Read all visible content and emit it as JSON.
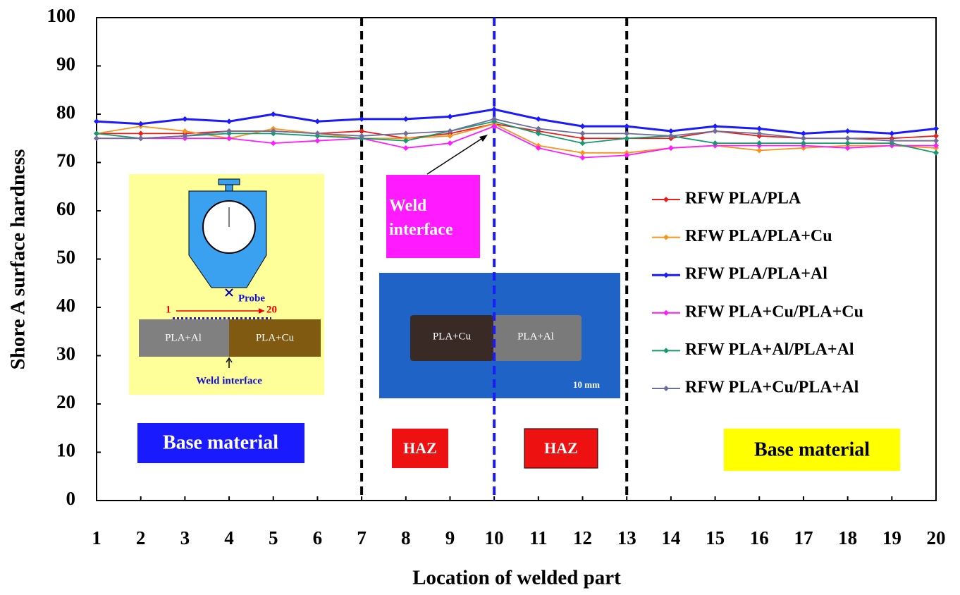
{
  "chart_data": {
    "type": "line",
    "y_label": "Shore  A surface hardness",
    "x_label": "Location of welded part",
    "x": [
      1,
      2,
      3,
      4,
      5,
      6,
      7,
      8,
      9,
      10,
      11,
      12,
      13,
      14,
      15,
      16,
      17,
      18,
      19,
      20
    ],
    "xlim": [
      1,
      20
    ],
    "xticks": [
      1,
      2,
      3,
      4,
      5,
      6,
      7,
      8,
      9,
      10,
      11,
      12,
      13,
      14,
      15,
      16,
      17,
      18,
      19,
      20
    ],
    "ylim": [
      0,
      100
    ],
    "yticks": [
      0,
      10,
      20,
      30,
      40,
      50,
      60,
      70,
      80,
      90,
      100
    ],
    "grid": false,
    "legend": "right",
    "series": [
      {
        "name": "RFW PLA/PLA",
        "color": "#e8201a",
        "values": [
          76,
          76,
          76,
          76.5,
          76.5,
          76,
          76.5,
          75,
          76,
          78,
          76.5,
          75,
          75,
          75,
          76.5,
          75.5,
          75,
          75,
          75,
          75.5
        ]
      },
      {
        "name": "RFW PLA/PLA+Cu",
        "color": "#f7941d",
        "values": [
          76,
          77.5,
          76.5,
          75,
          77,
          76,
          75,
          75,
          75.5,
          78,
          73.5,
          72,
          72,
          73,
          73.5,
          72.5,
          73,
          73.5,
          73.5,
          73
        ]
      },
      {
        "name": "RFW PLA/PLA+Al",
        "color": "#1a1aff",
        "values": [
          78.5,
          78,
          79,
          78.5,
          80,
          78.5,
          79,
          79,
          79.5,
          81,
          79,
          77.5,
          77.5,
          76.5,
          77.5,
          77,
          76,
          76.5,
          76,
          77
        ]
      },
      {
        "name": "RFW PLA+Cu/PLA+Cu",
        "color": "#ff1aff",
        "values": [
          75,
          75,
          75,
          75,
          74,
          74.5,
          75,
          73,
          74,
          77.5,
          73,
          71,
          71.5,
          73,
          73.5,
          73.5,
          73.5,
          73,
          73.5,
          73.5
        ]
      },
      {
        "name": "RFW PLA+Al/PLA+Al",
        "color": "#139a6e",
        "values": [
          76,
          75,
          75.5,
          76,
          76,
          75.5,
          75,
          74.5,
          76.5,
          78.5,
          76,
          74,
          75,
          75.5,
          74,
          74,
          74,
          74,
          74,
          72
        ]
      },
      {
        "name": "RFW PLA+Cu/PLA+Al",
        "color": "#6e6e9e",
        "values": [
          75,
          75,
          75.5,
          76.5,
          76.5,
          76,
          75.5,
          76,
          76.5,
          79,
          77,
          76,
          76,
          75.5,
          76.5,
          76,
          75,
          75,
          74.5,
          74.5
        ]
      }
    ],
    "vlines": [
      {
        "x": 7,
        "color": "#000000"
      },
      {
        "x": 10,
        "color": "#1a1aff"
      },
      {
        "x": 13,
        "color": "#000000"
      }
    ],
    "annotations": [
      "Base material",
      "HAZ",
      "HAZ",
      "Base material",
      "Weld interface"
    ],
    "inset_labels": [
      "Probe",
      "1",
      "20",
      "PLA+Al",
      "PLA+Cu",
      "Weld interface"
    ],
    "photo_labels": [
      "PLA+Cu",
      "PLA+Al",
      "10 mm"
    ]
  }
}
